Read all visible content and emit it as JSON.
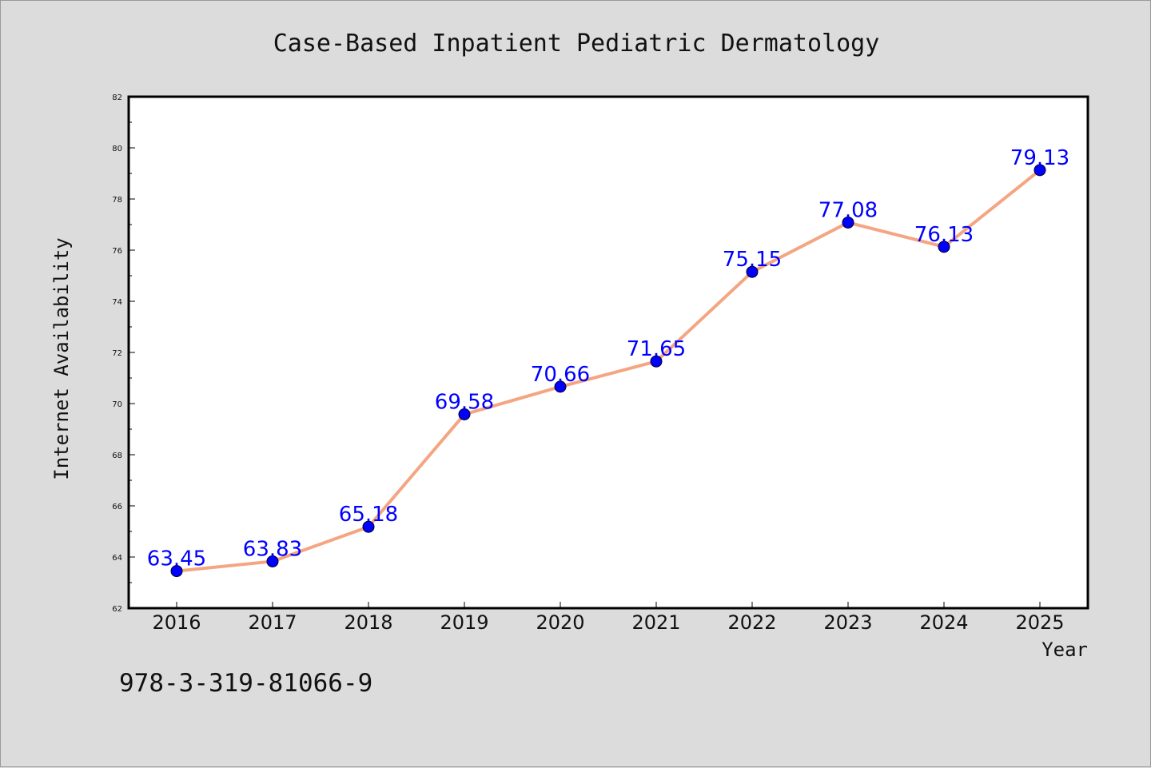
{
  "chart_data": {
    "type": "line",
    "title": "Case-Based Inpatient Pediatric Dermatology",
    "xlabel": "Year",
    "ylabel": "Internet Availability",
    "categories": [
      "2016",
      "2017",
      "2018",
      "2019",
      "2020",
      "2021",
      "2022",
      "2023",
      "2024",
      "2025"
    ],
    "values": [
      63.45,
      63.83,
      65.18,
      69.58,
      70.66,
      71.65,
      75.15,
      77.08,
      76.13,
      79.13
    ],
    "data_labels": [
      "63.45",
      "63.83",
      "65.18",
      "69.58",
      "70.66",
      "71.65",
      "75.15",
      "77.08",
      "76.13",
      "79.13"
    ],
    "ylim": [
      62,
      82
    ],
    "yticks": [
      "62",
      "64",
      "66",
      "68",
      "70",
      "72",
      "74",
      "76",
      "78",
      "80",
      "82"
    ],
    "grid": false,
    "line_color": "#f4a582",
    "marker_color": "#0000ff",
    "label_color": "#0000ff"
  },
  "footer": {
    "code": "978-3-319-81066-9"
  }
}
